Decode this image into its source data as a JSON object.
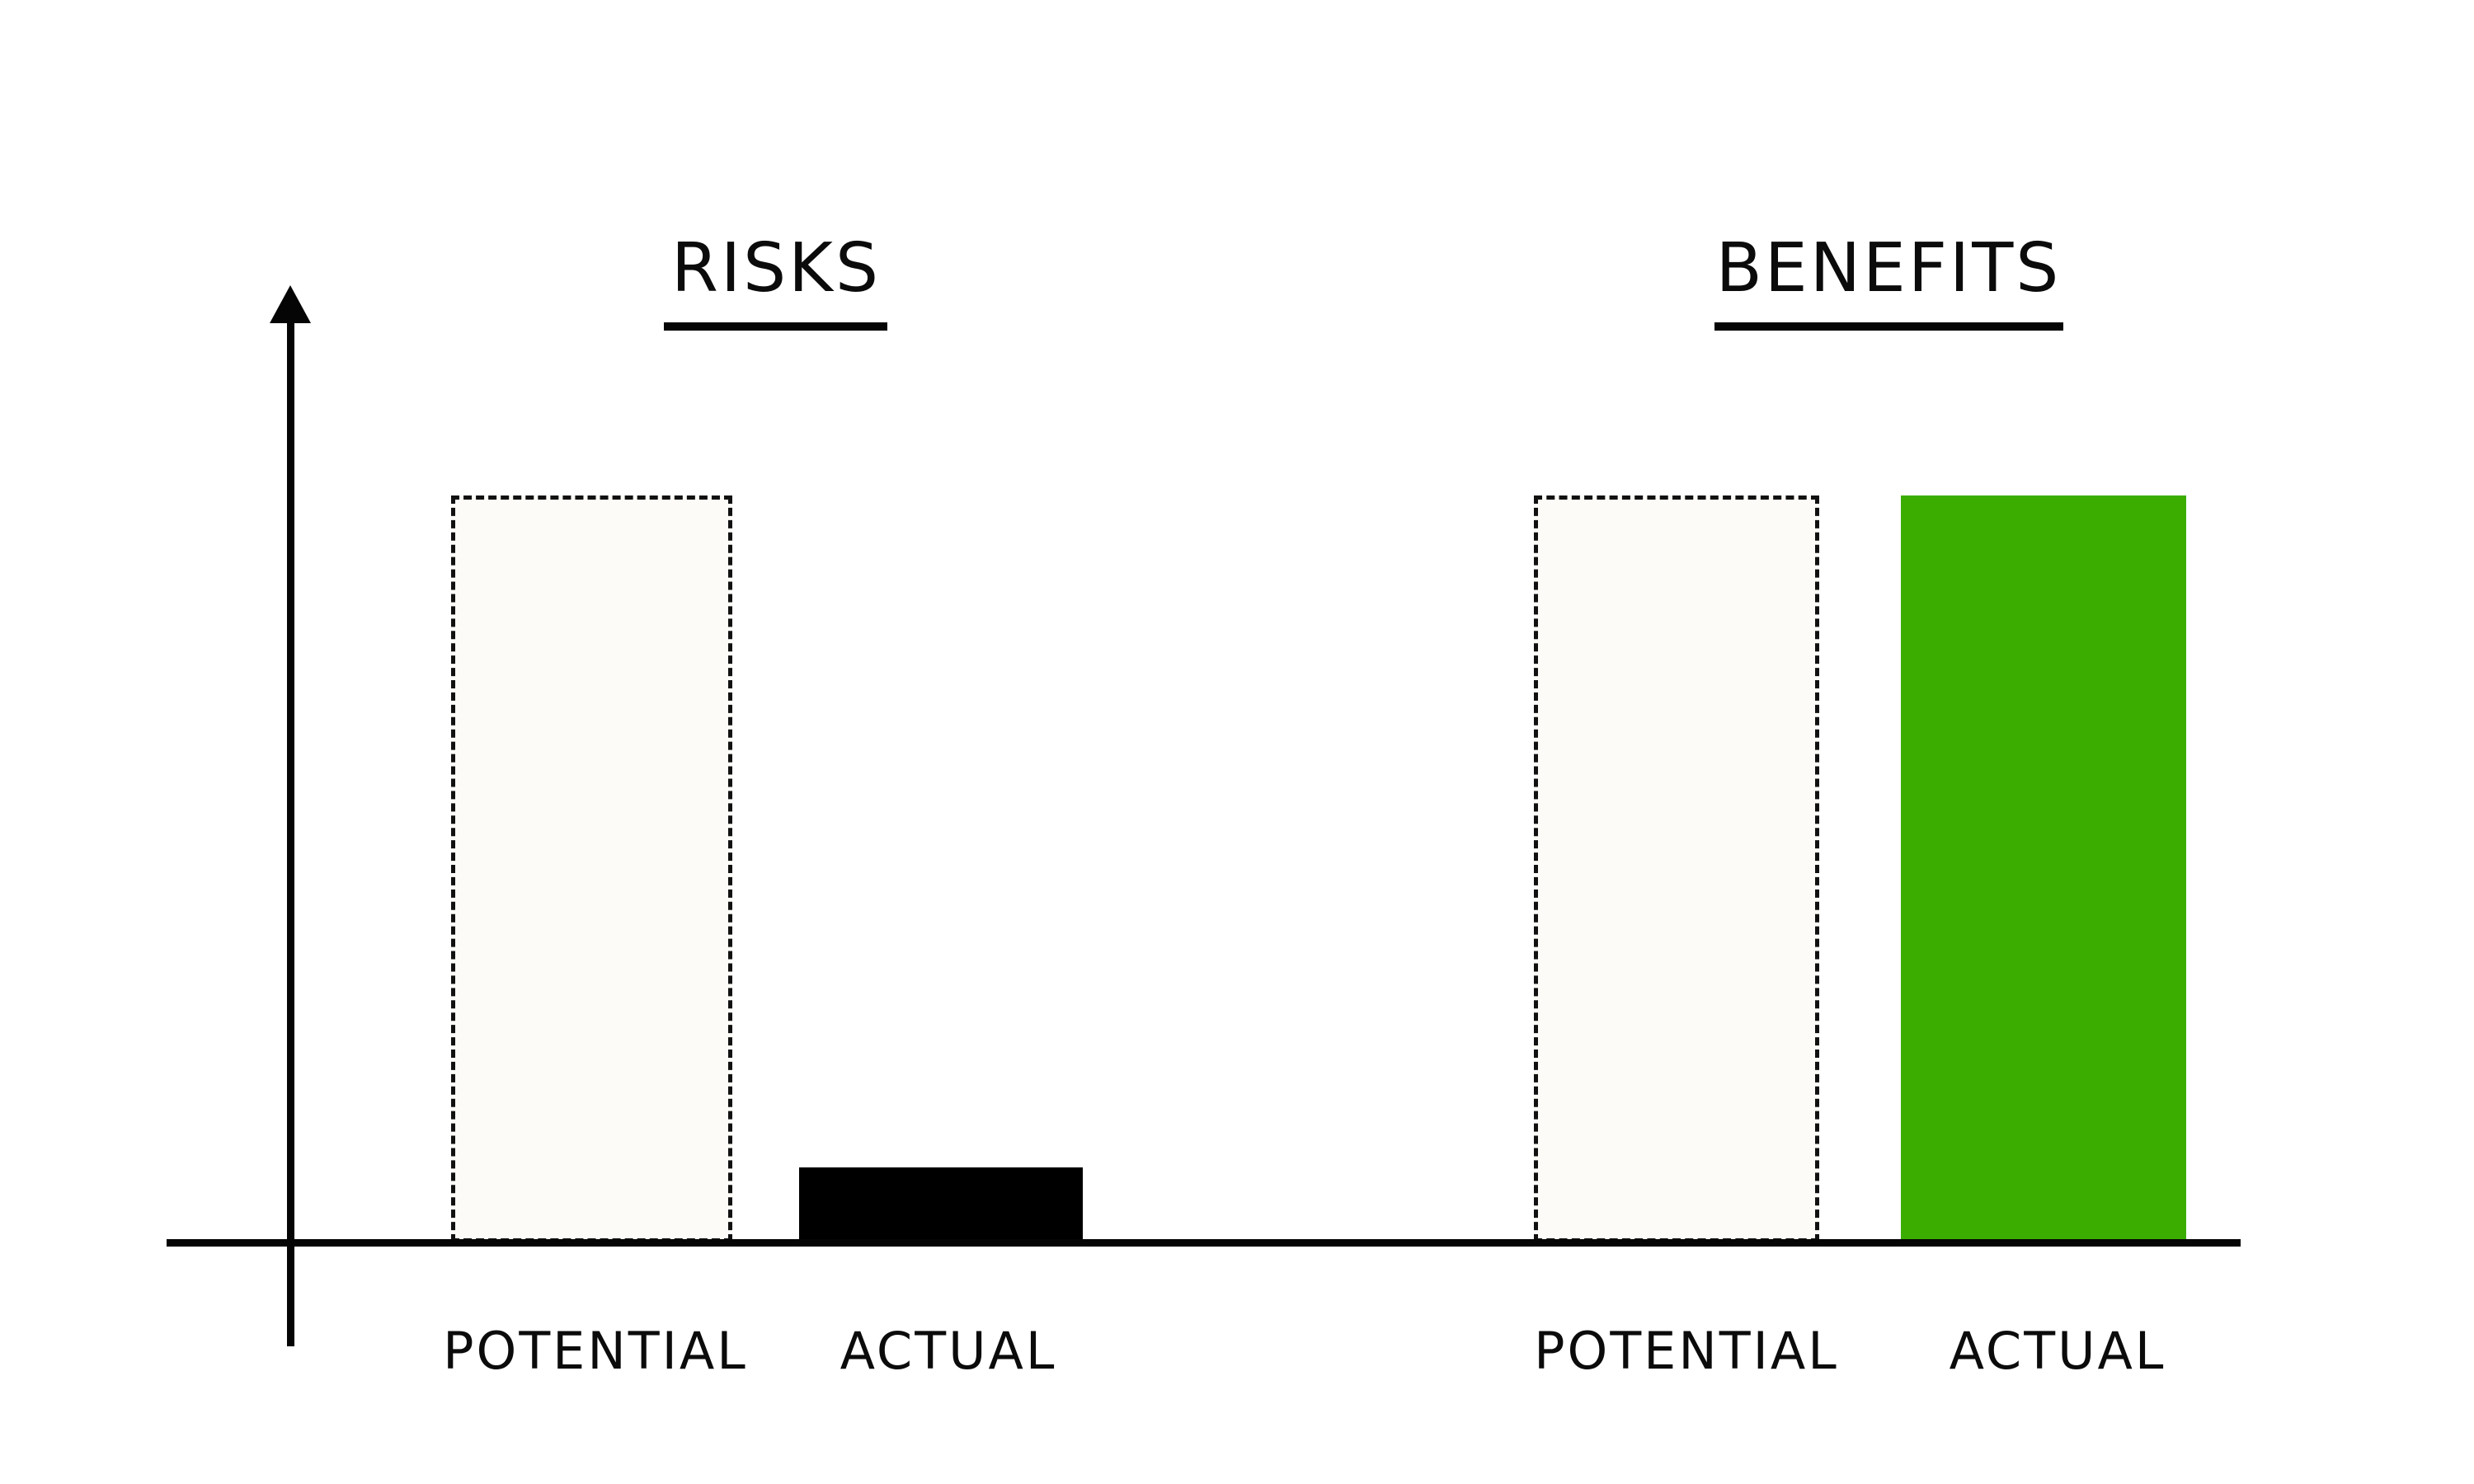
{
  "chart_data": {
    "type": "bar",
    "title": "",
    "value_unit": "relative-percent",
    "ylim": [
      0,
      100
    ],
    "y_axis": {
      "label": "",
      "arrow": true,
      "ticks": [],
      "grid": false
    },
    "categories": [
      "POTENTIAL",
      "ACTUAL",
      "POTENTIAL",
      "ACTUAL"
    ],
    "groups": [
      {
        "label": "RISKS",
        "bars": [
          {
            "label": "POTENTIAL",
            "value": 100,
            "style": "dashed-outline",
            "fill": "#fdfbf7",
            "border": "#111111"
          },
          {
            "label": "ACTUAL",
            "value": 10,
            "style": "solid",
            "fill": "#000000"
          }
        ]
      },
      {
        "label": "BENEFITS",
        "bars": [
          {
            "label": "POTENTIAL",
            "value": 100,
            "style": "dashed-outline",
            "fill": "#fdfbf7",
            "border": "#111111"
          },
          {
            "label": "ACTUAL",
            "value": 100,
            "style": "solid",
            "fill": "#3aad00"
          }
        ]
      }
    ],
    "legend": null,
    "annotations": []
  },
  "titles": {
    "risks": "RISKS",
    "benefits": "BENEFITS"
  },
  "axis_labels": {
    "risks_potential": "POTENTIAL",
    "risks_actual": "ACTUAL",
    "benefits_potential": "POTENTIAL",
    "benefits_actual": "ACTUAL"
  },
  "colors": {
    "background": "#ffffff",
    "axis": "#050505",
    "text": "#0b0b0b",
    "actual_risk_bar": "#000000",
    "actual_benefit_bar": "#3aad00",
    "potential_bar_fill": "#fdfbf7",
    "potential_bar_border": "#111111"
  }
}
